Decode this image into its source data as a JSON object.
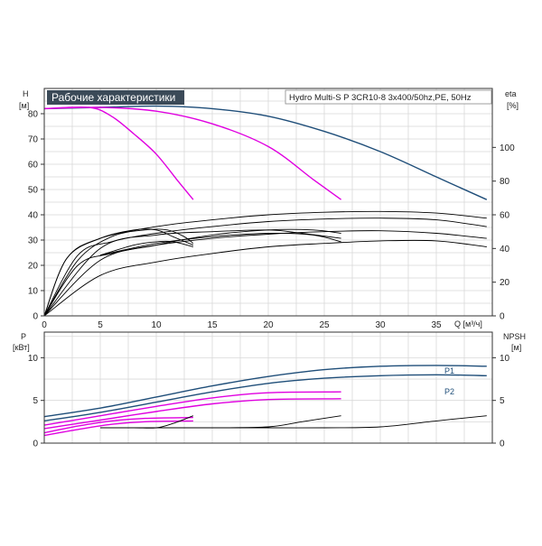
{
  "chart_data": [
    {
      "type": "line",
      "title": "Рабочие характеристики",
      "subtitle": "Hydro Multi-S P 3CR10-8 3x400/50hz,PE, 50Hz",
      "xlabel": "Q [м³/ч]",
      "ylabel": "H",
      "ylabel_unit": "[м]",
      "ylabel_right": "eta",
      "ylabel_right_unit": "[%]",
      "xlim": [
        0,
        40
      ],
      "ylim": [
        0,
        90
      ],
      "ylim_right": [
        0,
        135
      ],
      "x_ticks": [
        "0",
        "5",
        "10",
        "15",
        "20",
        "25",
        "30",
        "35"
      ],
      "y_ticks": [
        "0",
        "10",
        "20",
        "30",
        "40",
        "50",
        "60",
        "70",
        "80"
      ],
      "y_ticks_right": [
        "0",
        "20",
        "40",
        "60",
        "80",
        "100"
      ],
      "grid": true,
      "colors": {
        "head_blue": "#1f4e79",
        "head_magenta": "#e000e0",
        "eta": "#000000"
      },
      "series": [
        {
          "id": "H1",
          "color": "#1f4e79",
          "axis": "left",
          "x": [
            0,
            5,
            10,
            15,
            20,
            25,
            30,
            35,
            39.5
          ],
          "y": [
            82,
            82.5,
            83,
            82,
            79,
            73,
            65,
            55,
            46
          ]
        },
        {
          "id": "H2",
          "color": "#e000e0",
          "axis": "left",
          "x": [
            0,
            5,
            10,
            15,
            20,
            24,
            26.5
          ],
          "y": [
            82,
            82.5,
            81,
            76,
            67,
            54,
            46
          ]
        },
        {
          "id": "H3",
          "color": "#e000e0",
          "axis": "left",
          "x": [
            0,
            4,
            6,
            8,
            10,
            12,
            13.3
          ],
          "y": [
            82,
            82.5,
            79,
            72,
            64,
            53,
            46
          ]
        },
        {
          "id": "eta-1",
          "color": "#000000",
          "axis": "right",
          "x": [
            0,
            5,
            10,
            15,
            20,
            25,
            30,
            35,
            39.5
          ],
          "y": [
            0,
            24,
            32,
            37,
            41,
            43,
            44.5,
            44.5,
            41
          ]
        },
        {
          "id": "eta-2",
          "color": "#000000",
          "axis": "right",
          "x": [
            0,
            3,
            6,
            10,
            15,
            20,
            25,
            30,
            35,
            39.5
          ],
          "y": [
            0,
            30,
            37,
            42,
            46,
            48.5,
            50,
            50.5,
            49,
            46
          ]
        },
        {
          "id": "eta-3",
          "color": "#000000",
          "axis": "right",
          "x": [
            0,
            3,
            6,
            10,
            15,
            20,
            25,
            30,
            35,
            39.5
          ],
          "y": [
            0,
            36,
            44,
            49,
            53,
            56,
            57.5,
            58,
            57,
            53
          ]
        },
        {
          "id": "eta-4",
          "color": "#000000",
          "axis": "right",
          "x": [
            0,
            2,
            5,
            10,
            15,
            20,
            25,
            30,
            35,
            39.5
          ],
          "y": [
            0,
            34,
            46,
            53,
            57,
            60,
            61.5,
            62,
            61,
            58
          ]
        },
        {
          "id": "eta-5",
          "color": "#000000",
          "axis": "right",
          "x": [
            5,
            8,
            10,
            11.5,
            13.3
          ],
          "y": [
            36,
            42,
            44,
            44,
            41
          ]
        },
        {
          "id": "eta-6",
          "color": "#000000",
          "axis": "right",
          "x": [
            0,
            3,
            6,
            9,
            11,
            12.5,
            13.3
          ],
          "y": [
            0,
            33,
            47,
            51,
            51,
            47,
            43
          ]
        },
        {
          "id": "eta-7",
          "color": "#000000",
          "axis": "right",
          "x": [
            0,
            2,
            5,
            8,
            10,
            11.5,
            13.3
          ],
          "y": [
            0,
            34,
            46,
            51,
            51,
            47,
            42
          ]
        },
        {
          "id": "eta-8",
          "color": "#000000",
          "axis": "right",
          "x": [
            0,
            5,
            10,
            15,
            20,
            24,
            26.5
          ],
          "y": [
            0,
            33,
            42,
            48,
            51,
            51,
            49
          ]
        },
        {
          "id": "eta-9",
          "color": "#000000",
          "axis": "right",
          "x": [
            0,
            5,
            10,
            15,
            20,
            23,
            26.5
          ],
          "y": [
            0,
            40,
            48,
            50,
            51,
            49,
            46
          ]
        },
        {
          "id": "eta-10",
          "color": "#000000",
          "axis": "right",
          "x": [
            5,
            10,
            15,
            20,
            24,
            26.5
          ],
          "y": [
            36,
            43,
            47,
            49,
            48,
            44
          ]
        }
      ]
    },
    {
      "type": "line",
      "title": "",
      "xlabel": "",
      "ylabel": "P",
      "ylabel_unit": "[кВт]",
      "ylabel_right": "NPSH",
      "ylabel_right_unit": "[м]",
      "xlim": [
        0,
        40
      ],
      "ylim": [
        0,
        13
      ],
      "ylim_right": [
        0,
        13
      ],
      "y_ticks": [
        "0",
        "5",
        "10"
      ],
      "y_ticks_right": [
        "0",
        "5",
        "10"
      ],
      "grid": true,
      "series": [
        {
          "name": "P1",
          "color": "#1f4e79",
          "axis": "left",
          "x": [
            0,
            5,
            10,
            15,
            20,
            25,
            30,
            35,
            39.5
          ],
          "y": [
            3.1,
            4.1,
            5.4,
            6.7,
            7.8,
            8.6,
            9.0,
            9.1,
            9.0
          ]
        },
        {
          "name": "P2",
          "color": "#1f4e79",
          "axis": "left",
          "x": [
            0,
            5,
            10,
            15,
            20,
            25,
            30,
            35,
            39.5
          ],
          "y": [
            2.6,
            3.6,
            4.8,
            6.0,
            7.0,
            7.6,
            7.9,
            8.0,
            7.9
          ]
        },
        {
          "id": "P-m1",
          "color": "#e000e0",
          "axis": "left",
          "x": [
            0,
            5,
            10,
            15,
            20,
            26.5
          ],
          "y": [
            2.1,
            3.2,
            4.3,
            5.3,
            5.9,
            6.0
          ]
        },
        {
          "id": "P-m2",
          "color": "#e000e0",
          "axis": "left",
          "x": [
            0,
            5,
            10,
            15,
            20,
            26.5
          ],
          "y": [
            1.7,
            2.7,
            3.7,
            4.6,
            5.1,
            5.2
          ]
        },
        {
          "id": "P-m3",
          "color": "#e000e0",
          "axis": "left",
          "x": [
            0,
            3,
            6,
            9,
            13.3
          ],
          "y": [
            1.2,
            2.0,
            2.6,
            2.9,
            3.0
          ]
        },
        {
          "id": "P-m4",
          "color": "#e000e0",
          "axis": "left",
          "x": [
            0,
            3,
            6,
            9,
            13.3
          ],
          "y": [
            0.9,
            1.6,
            2.2,
            2.5,
            2.6
          ]
        },
        {
          "id": "NPSH-1",
          "color": "#000000",
          "axis": "right",
          "x": [
            5,
            10,
            15,
            20,
            25,
            30,
            35,
            39.5
          ],
          "y": [
            1.8,
            1.8,
            1.8,
            1.8,
            1.8,
            1.9,
            2.6,
            3.2
          ]
        },
        {
          "id": "NPSH-2",
          "color": "#000000",
          "axis": "right",
          "x": [
            5,
            10,
            15,
            20,
            23,
            26.5
          ],
          "y": [
            1.8,
            1.8,
            1.8,
            1.9,
            2.5,
            3.2
          ]
        },
        {
          "id": "NPSH-3",
          "color": "#000000",
          "axis": "right",
          "x": [
            5,
            8,
            10,
            11.5,
            13.3
          ],
          "y": [
            1.8,
            1.8,
            1.8,
            2.3,
            3.2
          ]
        }
      ]
    }
  ]
}
